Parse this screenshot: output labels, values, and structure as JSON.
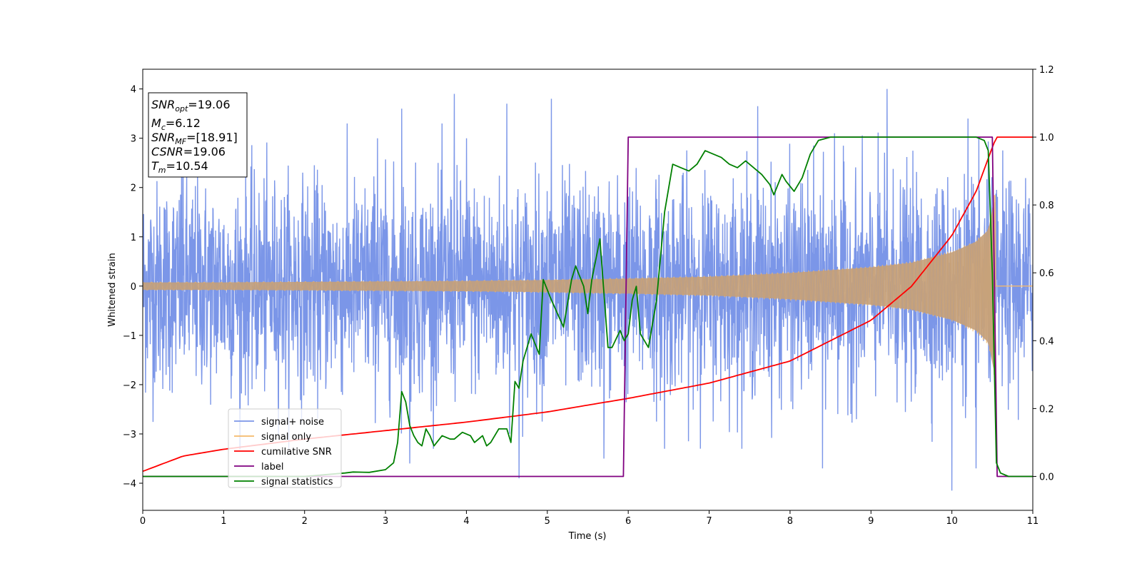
{
  "chart_data": {
    "type": "line",
    "xlabel": "Time (s)",
    "ylabel": "Whitened strain",
    "xlim": [
      0,
      11
    ],
    "ylim": [
      -4.55,
      4.4
    ],
    "y2lim": [
      -0.1,
      1.2
    ],
    "x_ticks": [
      "0",
      "1",
      "2",
      "3",
      "4",
      "5",
      "6",
      "7",
      "8",
      "9",
      "10",
      "11"
    ],
    "y_ticks": [
      "4",
      "3",
      "2",
      "1",
      "0",
      "−1",
      "−2",
      "−3",
      "−4"
    ],
    "y2_ticks": [
      "1.2",
      "1.0",
      "0.8",
      "0.6",
      "0.4",
      "0.2",
      "0.0"
    ],
    "grid": false,
    "legend_position": "lower-left",
    "annotation": {
      "snr_opt": {
        "symbol": "SNR",
        "sub": "opt",
        "value": "=19.06"
      },
      "mc": {
        "symbol": "M",
        "sub": "c",
        "value": "=6.12"
      },
      "snr_mf": {
        "symbol": "SNR",
        "sub": "MF",
        "value": "=[18.91]"
      },
      "csnr": {
        "symbol": "CSNR",
        "sub": "",
        "value": "=19.06"
      },
      "tm": {
        "symbol": "T",
        "sub": "m",
        "value": "=10.54"
      }
    },
    "series": [
      {
        "name": "signal+ noise",
        "color": "#7b96e8",
        "axis": "left",
        "description": "noisy whitened strain, approx. Gaussian with std ~1.1, range about -4.2 to 4.0",
        "spikes_up": [
          [
            0.48,
            3.7
          ],
          [
            2.9,
            3.0
          ],
          [
            3.2,
            3.6
          ],
          [
            3.85,
            3.9
          ],
          [
            4.0,
            3.0
          ],
          [
            4.5,
            3.7
          ],
          [
            5.05,
            3.8
          ],
          [
            6.45,
            3.8
          ],
          [
            7.6,
            3.65
          ],
          [
            8.55,
            3.1
          ],
          [
            9.2,
            4.0
          ],
          [
            10.2,
            3.4
          ]
        ],
        "spikes_down": [
          [
            1.2,
            -3.3
          ],
          [
            3.3,
            -3.6
          ],
          [
            4.65,
            -3.9
          ],
          [
            5.7,
            -3.5
          ],
          [
            6.45,
            -3.3
          ],
          [
            8.4,
            -3.7
          ],
          [
            10.0,
            -4.15
          ],
          [
            10.3,
            -3.7
          ]
        ]
      },
      {
        "name": "signal only",
        "color": "#f5b96a",
        "axis": "left",
        "envelope_x": [
          0,
          1,
          2,
          3,
          4,
          5,
          6,
          7,
          8,
          9,
          9.5,
          10,
          10.3,
          10.45,
          10.54
        ],
        "envelope_y": [
          0.08,
          0.08,
          0.09,
          0.1,
          0.11,
          0.13,
          0.16,
          0.2,
          0.28,
          0.4,
          0.5,
          0.72,
          0.95,
          1.2,
          2.0
        ]
      },
      {
        "name": "cumilative SNR",
        "color": "#ff0000",
        "axis": "right",
        "x": [
          0,
          0.5,
          1,
          2,
          3,
          4,
          5,
          6,
          7,
          8,
          9,
          9.5,
          10,
          10.3,
          10.5,
          10.55,
          10.6,
          11
        ],
        "y": [
          0.015,
          0.06,
          0.08,
          0.11,
          0.135,
          0.16,
          0.19,
          0.23,
          0.275,
          0.34,
          0.46,
          0.56,
          0.71,
          0.84,
          0.97,
          1.0,
          1.0,
          1.0
        ]
      },
      {
        "name": "label",
        "color": "#800080",
        "axis": "right",
        "x": [
          0,
          5.94,
          6.0,
          10.5,
          10.56,
          11
        ],
        "y": [
          0.0,
          0.0,
          1.0,
          1.0,
          0.0,
          0.0
        ]
      },
      {
        "name": "signal statistics",
        "color": "#008000",
        "axis": "right",
        "x": [
          0,
          0.5,
          1,
          1.5,
          2,
          2.5,
          2.6,
          2.8,
          3.0,
          3.1,
          3.15,
          3.2,
          3.25,
          3.3,
          3.35,
          3.4,
          3.45,
          3.5,
          3.55,
          3.6,
          3.7,
          3.8,
          3.85,
          3.95,
          4.05,
          4.1,
          4.2,
          4.25,
          4.3,
          4.4,
          4.5,
          4.55,
          4.6,
          4.65,
          4.7,
          4.8,
          4.9,
          4.95,
          5.05,
          5.2,
          5.3,
          5.35,
          5.45,
          5.5,
          5.55,
          5.65,
          5.75,
          5.8,
          5.9,
          5.95,
          6.0,
          6.05,
          6.1,
          6.15,
          6.25,
          6.35,
          6.45,
          6.55,
          6.65,
          6.75,
          6.85,
          6.95,
          7.05,
          7.15,
          7.25,
          7.35,
          7.45,
          7.55,
          7.65,
          7.75,
          7.8,
          7.9,
          7.95,
          8.05,
          8.15,
          8.25,
          8.35,
          8.5,
          9.0,
          9.5,
          10.0,
          10.3,
          10.4,
          10.45,
          10.5,
          10.55,
          10.6,
          10.7,
          11
        ],
        "y": [
          0.0,
          0.0,
          0.0,
          0.0,
          0.0,
          0.01,
          0.013,
          0.012,
          0.02,
          0.04,
          0.1,
          0.25,
          0.22,
          0.15,
          0.12,
          0.1,
          0.09,
          0.14,
          0.12,
          0.09,
          0.12,
          0.11,
          0.11,
          0.13,
          0.12,
          0.1,
          0.12,
          0.09,
          0.1,
          0.14,
          0.14,
          0.1,
          0.28,
          0.26,
          0.34,
          0.42,
          0.36,
          0.58,
          0.52,
          0.44,
          0.58,
          0.62,
          0.56,
          0.48,
          0.58,
          0.7,
          0.38,
          0.38,
          0.43,
          0.4,
          0.42,
          0.52,
          0.56,
          0.42,
          0.38,
          0.52,
          0.78,
          0.92,
          0.91,
          0.9,
          0.92,
          0.96,
          0.95,
          0.94,
          0.92,
          0.91,
          0.93,
          0.91,
          0.89,
          0.86,
          0.83,
          0.89,
          0.87,
          0.84,
          0.88,
          0.95,
          0.99,
          1.0,
          1.0,
          1.0,
          1.0,
          1.0,
          0.99,
          0.96,
          0.6,
          0.04,
          0.01,
          0.0,
          0.0
        ]
      }
    ]
  }
}
